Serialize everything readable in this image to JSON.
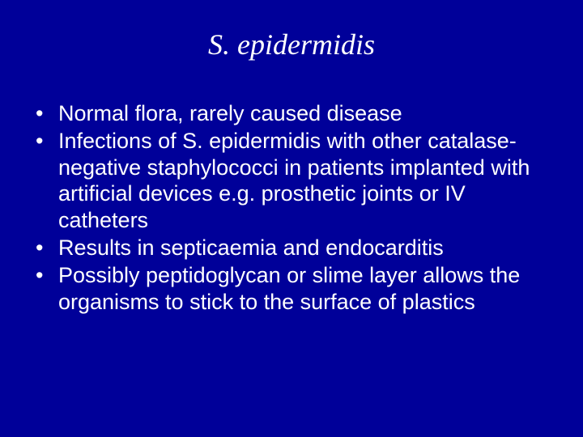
{
  "slide": {
    "background_color": "#000099",
    "text_color": "#ffffff",
    "title": "S. epidermidis",
    "title_fontsize": 36,
    "title_font_family": "Times New Roman",
    "title_font_style": "italic",
    "body_fontsize": 27,
    "body_font_family": "Arial",
    "bullets": [
      "Normal flora, rarely caused disease",
      "Infections of S. epidermidis with other catalase-negative staphylococci in patients implanted with artificial devices e.g. prosthetic joints or IV catheters",
      "Results in septicaemia and endocarditis",
      "Possibly peptidoglycan or slime layer allows the organisms to stick to the surface of plastics"
    ]
  }
}
